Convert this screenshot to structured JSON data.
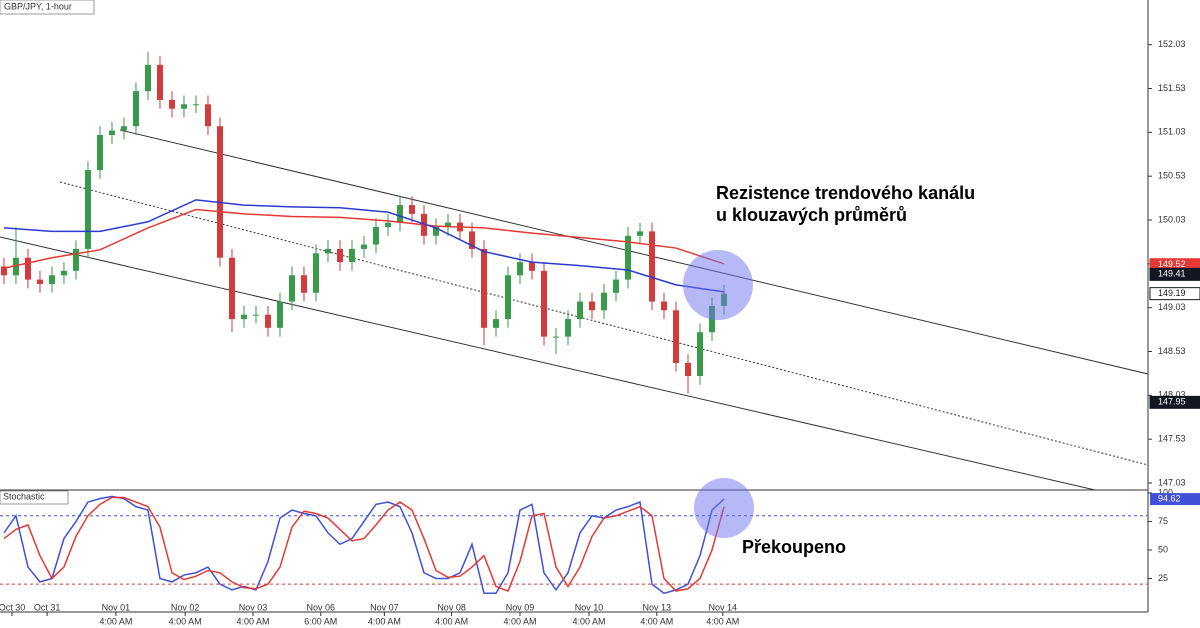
{
  "chart_data": [
    {
      "type": "candlestick",
      "title": "GBP/JPY, 1-hour",
      "annotation": [
        "Rezistence trendového kanálu",
        "u klouzavých průměrů"
      ],
      "x": [
        0,
        1,
        2,
        3,
        4,
        5,
        6,
        7,
        8,
        9,
        10,
        11,
        12,
        13,
        14,
        15,
        16,
        17,
        18,
        19,
        20,
        21,
        22,
        23,
        24,
        25,
        26,
        27,
        28,
        29,
        30,
        31,
        32,
        33,
        34,
        35,
        36,
        37,
        38,
        39,
        40,
        41,
        42,
        43,
        44,
        45,
        46,
        47,
        48,
        49,
        50,
        51,
        52,
        53,
        54,
        55,
        56,
        57,
        58,
        59,
        60
      ],
      "open": [
        149.5,
        149.4,
        149.6,
        149.35,
        149.3,
        149.4,
        149.45,
        149.7,
        150.6,
        151.0,
        151.05,
        151.1,
        151.5,
        151.8,
        151.4,
        151.3,
        151.35,
        151.35,
        151.1,
        149.6,
        148.9,
        148.95,
        148.95,
        148.8,
        149.1,
        149.4,
        149.2,
        149.65,
        149.7,
        149.55,
        149.7,
        149.75,
        149.95,
        150.0,
        150.2,
        150.1,
        149.85,
        149.95,
        150.0,
        149.9,
        149.7,
        148.8,
        148.9,
        149.4,
        149.55,
        149.45,
        148.7,
        148.7,
        148.9,
        149.1,
        149.0,
        149.2,
        149.35,
        149.85,
        149.9,
        149.1,
        149.0,
        148.4,
        148.25,
        148.75,
        149.05
      ],
      "high": [
        149.6,
        149.95,
        149.7,
        149.45,
        149.5,
        149.55,
        149.8,
        150.7,
        151.1,
        151.15,
        151.2,
        151.6,
        151.95,
        151.9,
        151.5,
        151.45,
        151.45,
        151.45,
        151.2,
        149.7,
        149.05,
        149.05,
        149.05,
        149.2,
        149.5,
        149.5,
        149.75,
        149.8,
        149.8,
        149.8,
        149.85,
        150.05,
        150.1,
        150.3,
        150.3,
        150.2,
        150.05,
        150.1,
        150.1,
        150.0,
        149.8,
        149.0,
        149.5,
        149.65,
        149.65,
        149.55,
        148.8,
        149.0,
        149.2,
        149.2,
        149.3,
        149.45,
        149.95,
        150.0,
        150.0,
        149.2,
        149.1,
        148.5,
        148.85,
        149.15,
        149.29
      ],
      "low": [
        149.3,
        149.3,
        149.25,
        149.2,
        149.2,
        149.3,
        149.35,
        149.6,
        150.5,
        150.9,
        150.95,
        151.0,
        151.4,
        151.3,
        151.2,
        151.2,
        151.25,
        151.0,
        149.5,
        148.75,
        148.8,
        148.85,
        148.7,
        148.7,
        149.0,
        149.1,
        149.1,
        149.55,
        149.45,
        149.45,
        149.6,
        149.65,
        149.85,
        149.9,
        150.0,
        149.75,
        149.75,
        149.85,
        149.8,
        149.6,
        148.6,
        148.7,
        148.8,
        149.3,
        149.35,
        148.6,
        148.5,
        148.6,
        148.8,
        148.9,
        148.9,
        149.1,
        149.25,
        149.75,
        149.0,
        148.9,
        148.3,
        148.05,
        148.15,
        148.65,
        148.95
      ],
      "close": [
        149.4,
        149.6,
        149.35,
        149.3,
        149.4,
        149.45,
        149.7,
        150.6,
        151.0,
        151.05,
        151.1,
        151.5,
        151.8,
        151.4,
        151.3,
        151.35,
        151.35,
        151.1,
        149.6,
        148.9,
        148.95,
        148.95,
        148.8,
        149.1,
        149.4,
        149.2,
        149.65,
        149.7,
        149.55,
        149.7,
        149.75,
        149.95,
        150.0,
        150.2,
        150.1,
        149.85,
        149.95,
        150.0,
        149.9,
        149.7,
        148.8,
        148.9,
        149.4,
        149.55,
        149.45,
        148.7,
        148.7,
        148.9,
        149.1,
        149.0,
        149.2,
        149.35,
        149.85,
        149.9,
        149.1,
        149.0,
        148.4,
        148.25,
        148.75,
        149.05,
        149.19
      ],
      "up_color": "#3a9a4a",
      "down_color": "#d23b3b",
      "lines": [
        {
          "color": "#e53935",
          "x": [
            0,
            4,
            8,
            12,
            16,
            20,
            24,
            28,
            32,
            36,
            40,
            44,
            48,
            52,
            56,
            60
          ],
          "values": [
            149.48,
            149.6,
            149.69,
            149.94,
            150.15,
            150.1,
            150.07,
            150.06,
            150.02,
            149.96,
            149.94,
            149.88,
            149.83,
            149.78,
            149.71,
            149.53
          ]
        },
        {
          "color": "#2a3bd1",
          "x": [
            0,
            4,
            8,
            12,
            16,
            20,
            24,
            28,
            32,
            36,
            40,
            44,
            48,
            52,
            56,
            60
          ],
          "values": [
            149.94,
            149.9,
            149.9,
            150.01,
            150.26,
            150.2,
            150.18,
            150.17,
            150.12,
            149.94,
            149.67,
            149.55,
            149.51,
            149.46,
            149.29,
            149.21
          ]
        }
      ],
      "price_labels": [
        {
          "value": 149.52,
          "color": "#e53935"
        },
        {
          "value": 149.41,
          "color": "#131722"
        },
        {
          "value": 149.19,
          "color": "#ffffff"
        },
        {
          "value": 147.95,
          "color": "#131722"
        }
      ],
      "xlim": [
        -0.33,
        95.33
      ],
      "ylim": [
        146.95,
        152.54
      ],
      "yticks": [
        147.03,
        147.53,
        148.03,
        148.53,
        149.03,
        149.53,
        150.03,
        150.53,
        151.03,
        151.53,
        152.03
      ]
    },
    {
      "type": "line",
      "title": "Stochastic",
      "annotation": "Překoupeno",
      "x": [
        0,
        1,
        2,
        3,
        4,
        5,
        6,
        7,
        8,
        9,
        10,
        11,
        12,
        13,
        14,
        15,
        16,
        17,
        18,
        19,
        20,
        21,
        22,
        23,
        24,
        25,
        26,
        27,
        28,
        29,
        30,
        31,
        32,
        33,
        34,
        35,
        36,
        37,
        38,
        39,
        40,
        41,
        42,
        43,
        44,
        45,
        46,
        47,
        48,
        49,
        50,
        51,
        52,
        53,
        54,
        55,
        56,
        57,
        58,
        59,
        60
      ],
      "series": [
        {
          "color": "#3f51d8",
          "values": [
            65,
            80,
            35,
            22,
            25,
            60,
            75,
            92,
            95,
            97,
            95,
            88,
            85,
            25,
            22,
            28,
            30,
            35,
            20,
            15,
            18,
            15,
            40,
            78,
            85,
            82,
            80,
            65,
            55,
            60,
            75,
            90,
            92,
            88,
            65,
            30,
            25,
            25,
            30,
            55,
            12,
            12,
            30,
            85,
            90,
            30,
            15,
            30,
            65,
            80,
            78,
            85,
            88,
            92,
            20,
            12,
            15,
            20,
            45,
            85,
            94.62
          ]
        },
        {
          "color": "#e53935",
          "values": [
            60,
            68,
            72,
            45,
            25,
            35,
            62,
            80,
            90,
            96,
            96,
            92,
            88,
            70,
            30,
            24,
            27,
            32,
            30,
            22,
            17,
            16,
            20,
            35,
            70,
            84,
            82,
            78,
            68,
            58,
            60,
            72,
            85,
            92,
            85,
            60,
            32,
            26,
            27,
            35,
            45,
            18,
            14,
            40,
            80,
            82,
            35,
            18,
            35,
            62,
            78,
            80,
            84,
            88,
            80,
            25,
            14,
            16,
            25,
            50,
            88
          ]
        }
      ],
      "levels": [
        {
          "value": 80,
          "color": "#3f51d8"
        },
        {
          "value": 20,
          "color": "#e53935"
        }
      ],
      "value_label": 94.62,
      "xlim": [
        -0.33,
        95.33
      ],
      "ylim": [
        -4.4,
        102.6
      ],
      "yticks": [
        25,
        50,
        75,
        100
      ],
      "xticks": [
        {
          "value": 0.67,
          "label": "Oct 30"
        },
        {
          "value": 3.6,
          "label": "Oct 31"
        },
        {
          "value": 9.33,
          "label": "Nov 01",
          "time": "4:00 AM"
        },
        {
          "value": 15.1,
          "label": "Nov 02",
          "time": "4:00 AM"
        },
        {
          "value": 20.75,
          "label": "Nov 03",
          "time": "4:00 AM"
        },
        {
          "value": 26.4,
          "label": "Nov 06",
          "time": "6:00 AM"
        },
        {
          "value": 31.7,
          "label": "Nov 07",
          "time": "4:00 AM"
        },
        {
          "value": 37.3,
          "label": "Nov 08",
          "time": "4:00 AM"
        },
        {
          "value": 43,
          "label": "Nov 09",
          "time": "4:00 AM"
        },
        {
          "value": 48.75,
          "label": "Nov 10",
          "time": "4:00 AM"
        },
        {
          "value": 54.4,
          "label": "Nov 13",
          "time": "4:00 AM"
        },
        {
          "value": 59.9,
          "label": "Nov 14",
          "time": "4:00 AM"
        }
      ]
    }
  ]
}
